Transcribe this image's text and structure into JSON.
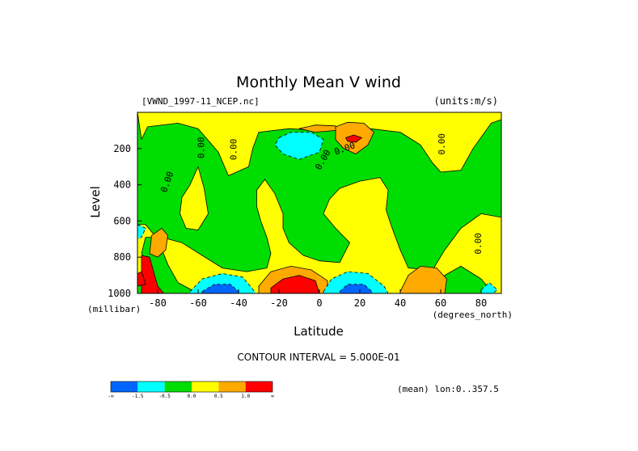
{
  "chart_data": {
    "type": "heatmap",
    "title": "Monthly Mean V wind",
    "file_label": "[VWND_1997-11_NCEP.nc]",
    "units_label": "(units:m/s)",
    "xlabel": "Latitude",
    "x_units": "(degrees_north)",
    "ylabel": "Level",
    "y_units": "(millibar)",
    "xlim": [
      -90,
      90
    ],
    "ylim": [
      1000,
      0
    ],
    "x_ticks": [
      -80,
      -60,
      -40,
      -20,
      0,
      20,
      40,
      60,
      80
    ],
    "y_ticks": [
      200,
      400,
      600,
      800,
      1000
    ],
    "contour_interval_text": "CONTOUR INTERVAL = 5.000E-01",
    "mean_text": "(mean) lon:0..357.5",
    "contour_labels": [
      "0.00",
      "0.00",
      "0.00",
      "0.00",
      "0.00",
      "0.00",
      "0.00"
    ],
    "colorbar": {
      "colors": [
        "#0066ff",
        "#00ffff",
        "#00dd00",
        "#ffff00",
        "#ffaa00",
        "#ff0000"
      ],
      "tick_labels": [
        "-∞",
        "-1.5",
        "-0.5",
        "0.0",
        "0.5",
        "1.0",
        "∞"
      ]
    },
    "regions": [
      {
        "level": 2,
        "points": [
          [
            -90,
            0
          ],
          [
            90,
            0
          ],
          [
            90,
            1000
          ],
          [
            -90,
            1000
          ]
        ]
      },
      {
        "level": 3,
        "points": [
          [
            -88,
            150
          ],
          [
            -85,
            80
          ],
          [
            -70,
            60
          ],
          [
            -60,
            90
          ],
          [
            -50,
            220
          ],
          [
            -45,
            350
          ],
          [
            -35,
            300
          ],
          [
            -33,
            200
          ],
          [
            -30,
            110
          ],
          [
            -15,
            90
          ],
          [
            0,
            100
          ],
          [
            25,
            90
          ],
          [
            40,
            110
          ],
          [
            50,
            180
          ],
          [
            56,
            280
          ],
          [
            60,
            330
          ],
          [
            70,
            320
          ],
          [
            76,
            200
          ],
          [
            85,
            60
          ],
          [
            90,
            40
          ],
          [
            90,
            0
          ],
          [
            -90,
            0
          ]
        ]
      },
      {
        "level": 3,
        "points": [
          [
            -68,
            470
          ],
          [
            -64,
            400
          ],
          [
            -60,
            300
          ],
          [
            -57,
            420
          ],
          [
            -55,
            560
          ],
          [
            -60,
            650
          ],
          [
            -66,
            640
          ],
          [
            -69,
            560
          ]
        ]
      },
      {
        "level": 3,
        "points": [
          [
            -31,
            430
          ],
          [
            -27,
            370
          ],
          [
            -22,
            450
          ],
          [
            -18,
            560
          ],
          [
            -18,
            640
          ],
          [
            -15,
            720
          ],
          [
            -8,
            790
          ],
          [
            0,
            820
          ],
          [
            10,
            830
          ],
          [
            15,
            720
          ],
          [
            8,
            640
          ],
          [
            2,
            560
          ],
          [
            5,
            480
          ],
          [
            10,
            420
          ],
          [
            20,
            380
          ],
          [
            30,
            360
          ],
          [
            34,
            430
          ],
          [
            33,
            540
          ],
          [
            36,
            640
          ],
          [
            40,
            760
          ],
          [
            44,
            860
          ],
          [
            56,
            870
          ],
          [
            62,
            760
          ],
          [
            70,
            640
          ],
          [
            80,
            560
          ],
          [
            90,
            580
          ],
          [
            90,
            1000
          ],
          [
            86,
            1000
          ],
          [
            80,
            920
          ],
          [
            70,
            850
          ],
          [
            62,
            900
          ],
          [
            60,
            1000
          ],
          [
            -60,
            1000
          ],
          [
            -70,
            940
          ],
          [
            -75,
            840
          ],
          [
            -80,
            700
          ],
          [
            -86,
            620
          ],
          [
            -90,
            620
          ],
          [
            -90,
            930
          ],
          [
            -86,
            930
          ],
          [
            -84,
            850
          ],
          [
            -88,
            780
          ],
          [
            -86,
            690
          ],
          [
            -78,
            690
          ],
          [
            -68,
            720
          ],
          [
            -58,
            790
          ],
          [
            -48,
            860
          ],
          [
            -36,
            880
          ],
          [
            -26,
            860
          ],
          [
            -24,
            780
          ],
          [
            -26,
            690
          ],
          [
            -29,
            600
          ],
          [
            -31,
            520
          ]
        ]
      },
      {
        "level": 4,
        "points": [
          [
            -83,
            680
          ],
          [
            -78,
            640
          ],
          [
            -75,
            680
          ],
          [
            -76,
            760
          ],
          [
            -80,
            800
          ],
          [
            -84,
            780
          ]
        ]
      },
      {
        "level": 4,
        "points": [
          [
            -30,
            960
          ],
          [
            -24,
            880
          ],
          [
            -14,
            850
          ],
          [
            -4,
            870
          ],
          [
            4,
            930
          ],
          [
            4,
            1000
          ],
          [
            -30,
            1000
          ]
        ]
      },
      {
        "level": 4,
        "points": [
          [
            40,
            990
          ],
          [
            44,
            900
          ],
          [
            50,
            850
          ],
          [
            58,
            860
          ],
          [
            63,
            920
          ],
          [
            62,
            1000
          ],
          [
            40,
            1000
          ]
        ]
      },
      {
        "level": 4,
        "points": [
          [
            8,
            80
          ],
          [
            14,
            55
          ],
          [
            22,
            60
          ],
          [
            27,
            110
          ],
          [
            24,
            180
          ],
          [
            18,
            230
          ],
          [
            12,
            200
          ],
          [
            8,
            150
          ]
        ]
      },
      {
        "level": 4,
        "points": [
          [
            -10,
            90
          ],
          [
            -2,
            70
          ],
          [
            8,
            75
          ],
          [
            8,
            100
          ],
          [
            -2,
            110
          ]
        ]
      },
      {
        "level": 5,
        "points": [
          [
            -88,
            790
          ],
          [
            -84,
            800
          ],
          [
            -82,
            880
          ],
          [
            -80,
            960
          ],
          [
            -77,
            1000
          ],
          [
            -88,
            1000
          ]
        ]
      },
      {
        "level": 5,
        "points": [
          [
            -24,
            970
          ],
          [
            -18,
            920
          ],
          [
            -10,
            900
          ],
          [
            -2,
            930
          ],
          [
            0,
            1000
          ],
          [
            -24,
            1000
          ]
        ]
      },
      {
        "level": 5,
        "points": [
          [
            13,
            140
          ],
          [
            17,
            125
          ],
          [
            21,
            140
          ],
          [
            18,
            165
          ],
          [
            14,
            160
          ]
        ]
      },
      {
        "level": 1,
        "points": [
          [
            -20,
            140
          ],
          [
            -14,
            110
          ],
          [
            -4,
            110
          ],
          [
            2,
            150
          ],
          [
            0,
            220
          ],
          [
            -10,
            260
          ],
          [
            -18,
            230
          ],
          [
            -22,
            180
          ]
        ]
      },
      {
        "level": 1,
        "points": [
          [
            -64,
            990
          ],
          [
            -58,
            920
          ],
          [
            -48,
            890
          ],
          [
            -38,
            910
          ],
          [
            -32,
            990
          ],
          [
            -32,
            1000
          ],
          [
            -64,
            1000
          ]
        ]
      },
      {
        "level": 1,
        "points": [
          [
            2,
            990
          ],
          [
            6,
            920
          ],
          [
            14,
            880
          ],
          [
            24,
            890
          ],
          [
            32,
            960
          ],
          [
            34,
            1000
          ],
          [
            2,
            1000
          ]
        ]
      },
      {
        "level": 1,
        "points": [
          [
            -90,
            620
          ],
          [
            -86,
            640
          ],
          [
            -88,
            690
          ],
          [
            -90,
            700
          ]
        ]
      },
      {
        "level": 1,
        "points": [
          [
            80,
            980
          ],
          [
            84,
            940
          ],
          [
            88,
            980
          ],
          [
            86,
            1000
          ],
          [
            80,
            1000
          ]
        ]
      },
      {
        "level": 0,
        "points": [
          [
            -58,
            990
          ],
          [
            -52,
            950
          ],
          [
            -44,
            950
          ],
          [
            -40,
            990
          ],
          [
            -40,
            1000
          ],
          [
            -58,
            1000
          ]
        ]
      },
      {
        "level": 0,
        "points": [
          [
            10,
            990
          ],
          [
            14,
            950
          ],
          [
            22,
            950
          ],
          [
            26,
            990
          ],
          [
            26,
            1000
          ],
          [
            10,
            1000
          ]
        ]
      },
      {
        "level": 5,
        "points": [
          [
            -90,
            890
          ],
          [
            -88,
            880
          ],
          [
            -86,
            950
          ],
          [
            -90,
            960
          ]
        ]
      }
    ]
  }
}
